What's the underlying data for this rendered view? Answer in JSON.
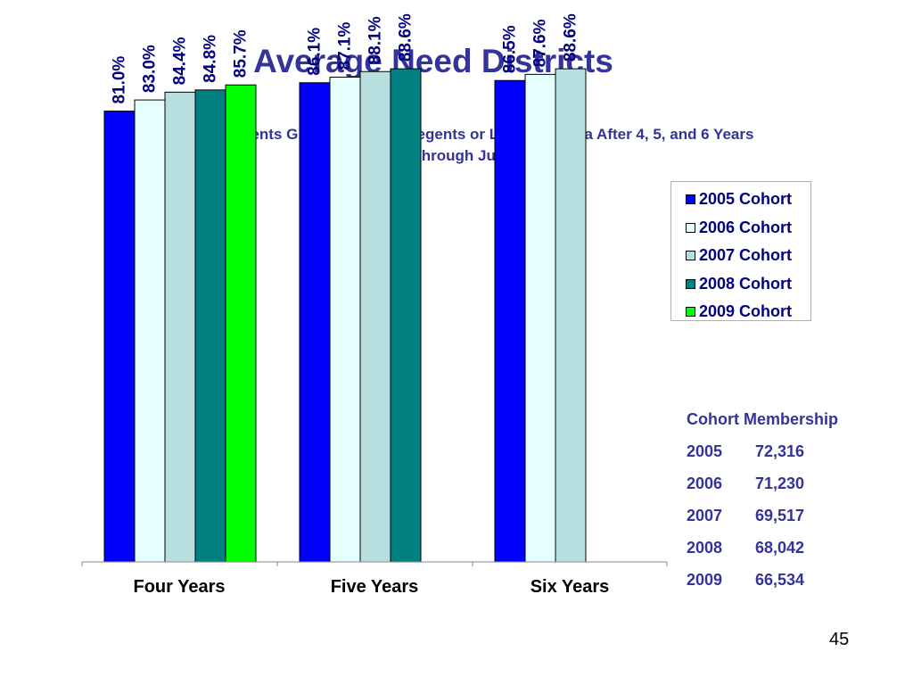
{
  "title": "Average Need Districts",
  "subtitle_line1": "Percentage of Students Graduating with Regents or Local Diploma After 4, 5, and 6 Years",
  "subtitle_line2": "Results Through June",
  "colors": {
    "title": "#333399",
    "legend_text": "#000080",
    "series": [
      "#0000ff",
      "#e6ffff",
      "#b7dfdf",
      "#008080",
      "#00ff00"
    ]
  },
  "chart_data": {
    "type": "bar",
    "categories": [
      "Four Years",
      "Five Years",
      "Six Years"
    ],
    "series": [
      {
        "name": "2005 Cohort",
        "values": [
          81.0,
          86.1,
          86.5
        ]
      },
      {
        "name": "2006 Cohort",
        "values": [
          83.0,
          87.1,
          87.6
        ]
      },
      {
        "name": "2007 Cohort",
        "values": [
          84.4,
          88.1,
          88.6
        ]
      },
      {
        "name": "2008 Cohort",
        "values": [
          84.8,
          88.6,
          null
        ]
      },
      {
        "name": "2009 Cohort",
        "values": [
          85.7,
          null,
          null
        ]
      }
    ],
    "data_labels": [
      [
        "81.0%",
        "86.1%",
        "86.5%"
      ],
      [
        "83.0%",
        "87.1%",
        "87.6%"
      ],
      [
        "84.4%",
        "88.1%",
        "88.6%"
      ],
      [
        "84.8%",
        "88.6%",
        null
      ],
      [
        "85.7%",
        null,
        null
      ]
    ],
    "ylim": [
      0,
      100
    ],
    "xlabel": "",
    "ylabel": "",
    "legend_position": "top-right",
    "grid": false
  },
  "membership": {
    "title": "Cohort Membership",
    "rows": [
      {
        "year": "2005",
        "count": "72,316"
      },
      {
        "year": "2006",
        "count": "71,230"
      },
      {
        "year": "2007",
        "count": "69,517"
      },
      {
        "year": "2008",
        "count": "68,042"
      },
      {
        "year": "2009",
        "count": "66,534"
      }
    ]
  },
  "page_number": "45"
}
